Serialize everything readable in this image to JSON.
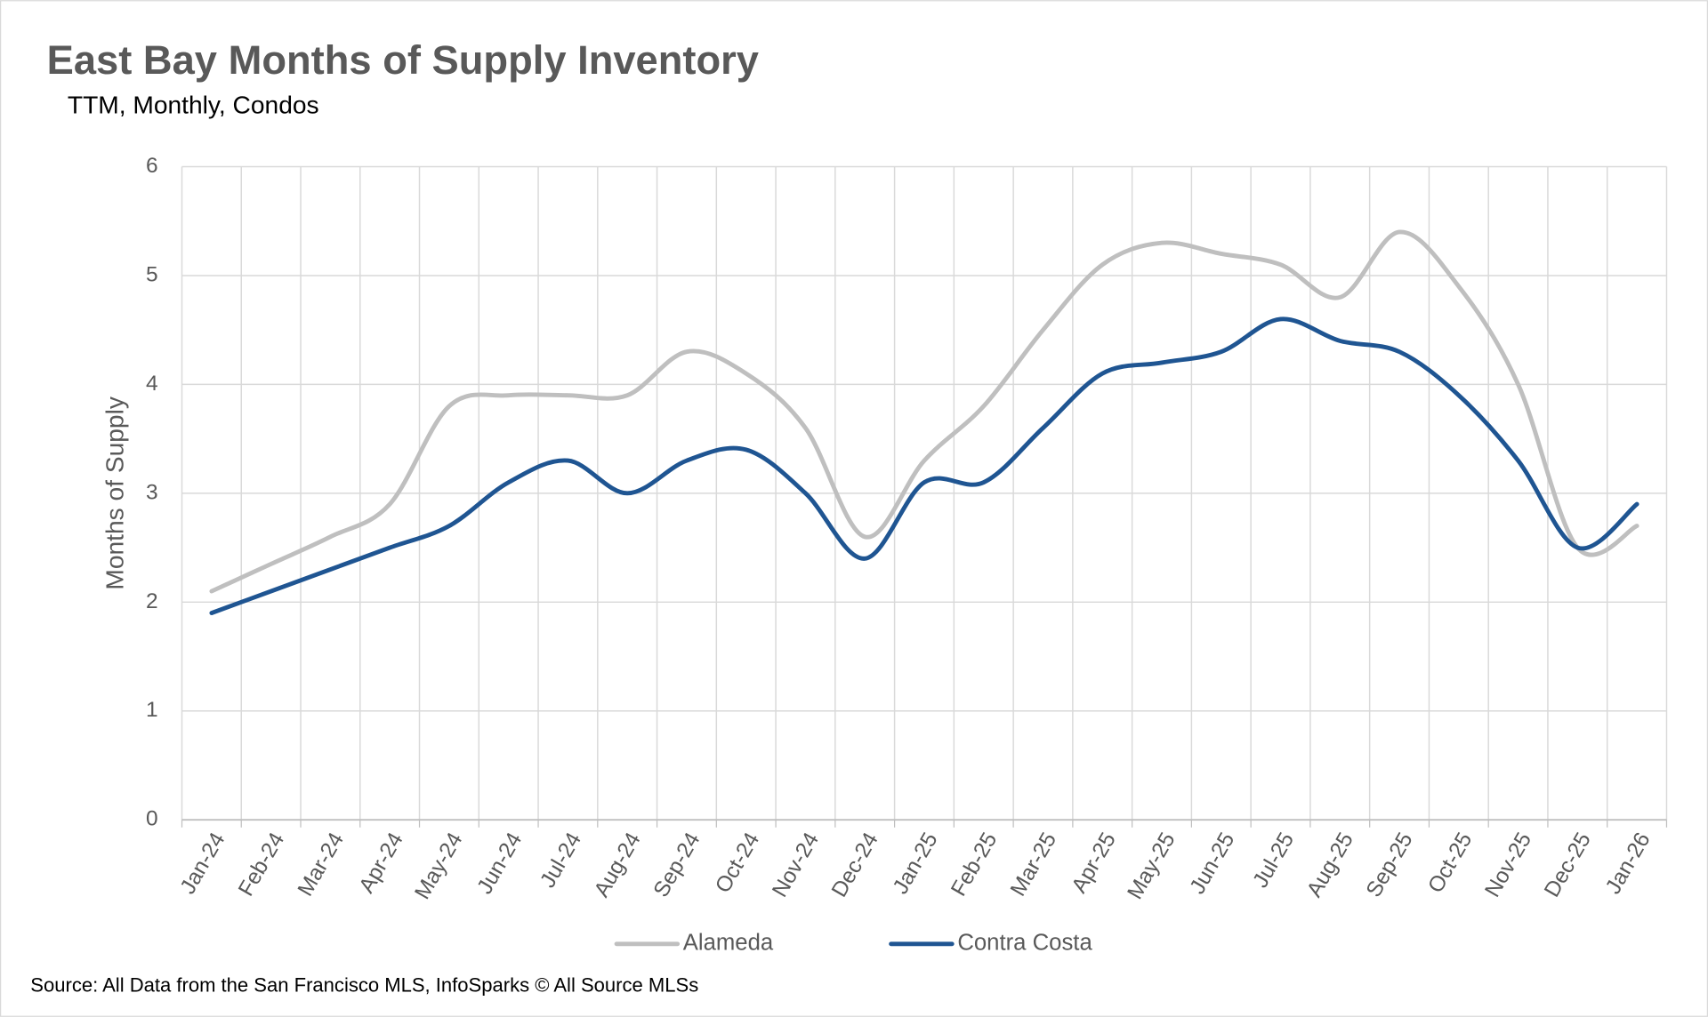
{
  "chart_data": {
    "type": "line",
    "title": "East Bay Months of Supply Inventory",
    "subtitle": "TTM, Monthly, Condos",
    "y_label": "Months of Supply",
    "source": "Source: All Data from the San Francisco MLS, InfoSparks © All Source MLSs",
    "categories": [
      "Jan-24",
      "Feb-24",
      "Mar-24",
      "Apr-24",
      "May-24",
      "Jun-24",
      "Jul-24",
      "Aug-24",
      "Sep-24",
      "Oct-24",
      "Nov-24",
      "Dec-24",
      "Jan-25",
      "Feb-25",
      "Mar-25",
      "Apr-25",
      "May-25",
      "Jun-25",
      "Jul-25",
      "Aug-25",
      "Sep-25",
      "Oct-25",
      "Nov-25",
      "Dec-25",
      "Jan-26"
    ],
    "series": [
      {
        "name": "Alameda",
        "color": "#bfbfbf",
        "values": [
          2.1,
          2.35,
          2.6,
          2.9,
          3.8,
          3.9,
          3.9,
          3.9,
          4.3,
          4.1,
          3.6,
          2.6,
          3.3,
          3.8,
          4.5,
          5.1,
          5.3,
          5.2,
          5.1,
          4.8,
          5.4,
          4.9,
          4.0,
          2.5,
          2.7
        ]
      },
      {
        "name": "Contra Costa",
        "color": "#1f5592",
        "values": [
          1.9,
          2.1,
          2.3,
          2.5,
          2.7,
          3.1,
          3.3,
          3.0,
          3.3,
          3.4,
          3.0,
          2.4,
          3.1,
          3.1,
          3.6,
          4.1,
          4.2,
          4.3,
          4.6,
          4.4,
          4.3,
          3.9,
          3.3,
          2.5,
          2.9
        ]
      }
    ],
    "ylim": [
      0,
      6
    ],
    "yticks": [
      0,
      1,
      2,
      3,
      4,
      5,
      6
    ],
    "grid": true,
    "smooth": true,
    "legend": "bottom"
  }
}
